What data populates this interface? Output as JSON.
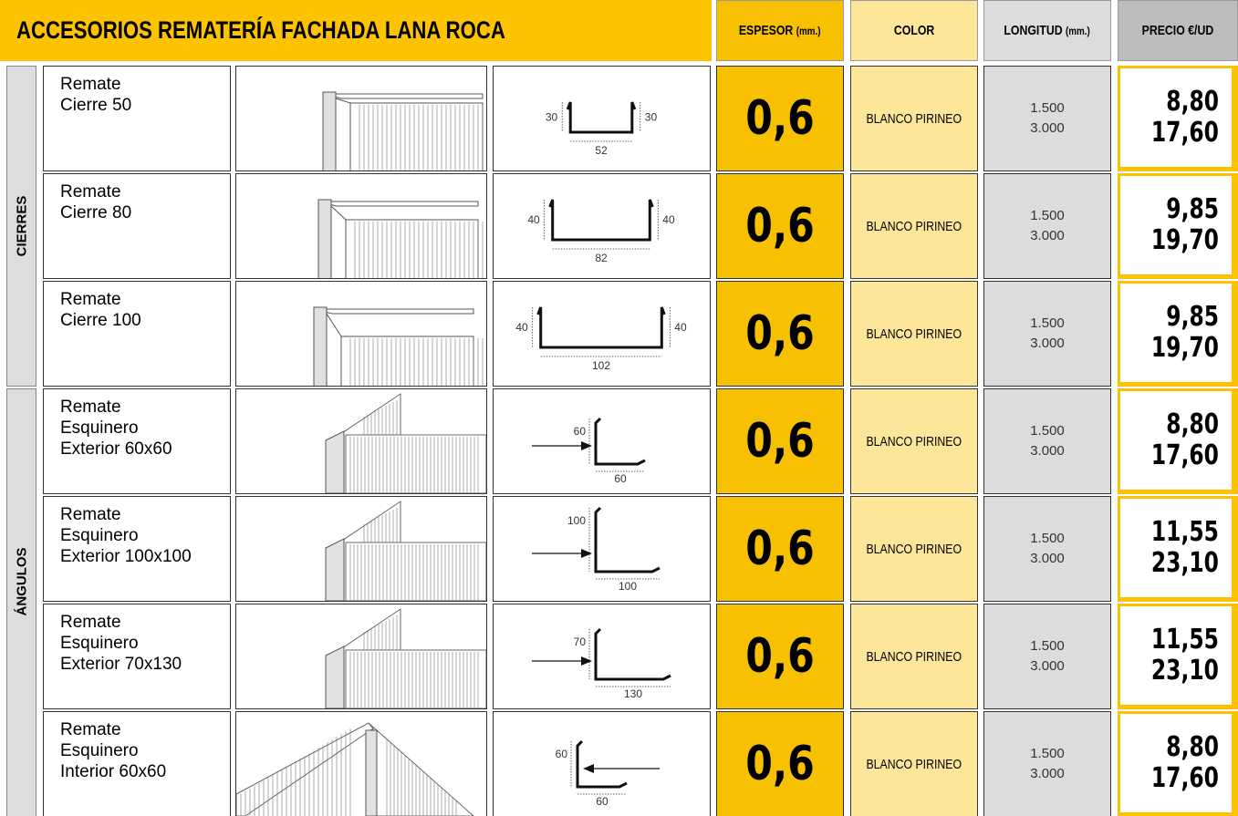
{
  "header": {
    "title": "ACCESORIOS REMATERÍA FACHADA LANA ROCA",
    "columns": [
      {
        "label": "ESPESOR",
        "unit": "(mm.)"
      },
      {
        "label": "COLOR"
      },
      {
        "label": "LONGITUD",
        "unit": "(mm.)"
      },
      {
        "label": "PRECIO €/UD"
      }
    ]
  },
  "groups": [
    {
      "label": "CIERRES",
      "rows": [
        {
          "name": [
            "Remate",
            "Cierre 50"
          ],
          "dims": [
            "30",
            "30",
            "52"
          ],
          "thickness": "0,6",
          "color": "BLANCO PIRINEO",
          "lengths": [
            "1.500",
            "3.000"
          ],
          "prices": [
            "8,80",
            "17,60"
          ]
        },
        {
          "name": [
            "Remate",
            "Cierre 80"
          ],
          "dims": [
            "40",
            "40",
            "82"
          ],
          "thickness": "0,6",
          "color": "BLANCO PIRINEO",
          "lengths": [
            "1.500",
            "3.000"
          ],
          "prices": [
            "9,85",
            "19,70"
          ]
        },
        {
          "name": [
            "Remate",
            "Cierre 100"
          ],
          "dims": [
            "40",
            "40",
            "102"
          ],
          "thickness": "0,6",
          "color": "BLANCO PIRINEO",
          "lengths": [
            "1.500",
            "3.000"
          ],
          "prices": [
            "9,85",
            "19,70"
          ]
        }
      ]
    },
    {
      "label": "ÁNGULOS",
      "rows": [
        {
          "name": [
            "Remate",
            "Esquinero",
            "Exterior 60x60"
          ],
          "dims": [
            "60",
            "60"
          ],
          "thickness": "0,6",
          "color": "BLANCO PIRINEO",
          "lengths": [
            "1.500",
            "3.000"
          ],
          "prices": [
            "8,80",
            "17,60"
          ]
        },
        {
          "name": [
            "Remate",
            "Esquinero",
            "Exterior 100x100"
          ],
          "dims": [
            "100",
            "100"
          ],
          "thickness": "0,6",
          "color": "BLANCO PIRINEO",
          "lengths": [
            "1.500",
            "3.000"
          ],
          "prices": [
            "11,55",
            "23,10"
          ]
        },
        {
          "name": [
            "Remate",
            "Esquinero",
            "Exterior 70x130"
          ],
          "dims": [
            "70",
            "130"
          ],
          "thickness": "0,6",
          "color": "BLANCO PIRINEO",
          "lengths": [
            "1.500",
            "3.000"
          ],
          "prices": [
            "11,55",
            "23,10"
          ]
        },
        {
          "name": [
            "Remate",
            "Esquinero",
            "Interior 60x60"
          ],
          "dims": [
            "60",
            "60"
          ],
          "thickness": "0,6",
          "color": "BLANCO PIRINEO",
          "lengths": [
            "1.500",
            "3.000"
          ],
          "prices": [
            "8,80",
            "17,60"
          ]
        }
      ]
    }
  ]
}
